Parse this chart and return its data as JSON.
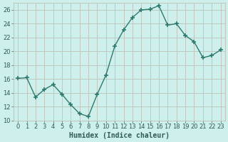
{
  "x": [
    0,
    1,
    2,
    3,
    4,
    5,
    6,
    7,
    8,
    9,
    10,
    11,
    12,
    13,
    14,
    15,
    16,
    17,
    18,
    19,
    20,
    21,
    22,
    23
  ],
  "y": [
    16.1,
    16.2,
    13.4,
    14.5,
    15.2,
    13.8,
    12.3,
    11.0,
    10.6,
    13.8,
    16.6,
    20.8,
    23.1,
    24.9,
    26.0,
    26.1,
    26.6,
    23.8,
    24.0,
    22.3,
    21.4,
    19.1,
    19.4,
    20.2
  ],
  "line_color": "#2d7a6e",
  "marker": "+",
  "marker_size": 4,
  "marker_linewidth": 1.2,
  "bg_color": "#cef0ec",
  "grid_major_color": "#c0c8c0",
  "grid_minor_color": "#dde8e5",
  "xlabel": "Humidex (Indice chaleur)",
  "ylim": [
    10,
    27
  ],
  "xlim": [
    -0.5,
    23.5
  ],
  "yticks": [
    10,
    12,
    14,
    16,
    18,
    20,
    22,
    24,
    26
  ],
  "xtick_labels": [
    "0",
    "1",
    "2",
    "3",
    "4",
    "5",
    "6",
    "7",
    "8",
    "9",
    "10",
    "11",
    "12",
    "13",
    "14",
    "15",
    "16",
    "17",
    "18",
    "19",
    "20",
    "21",
    "22",
    "23"
  ],
  "font_color": "#2d5a55",
  "label_fontsize": 7,
  "tick_fontsize": 6,
  "line_width": 1.0
}
